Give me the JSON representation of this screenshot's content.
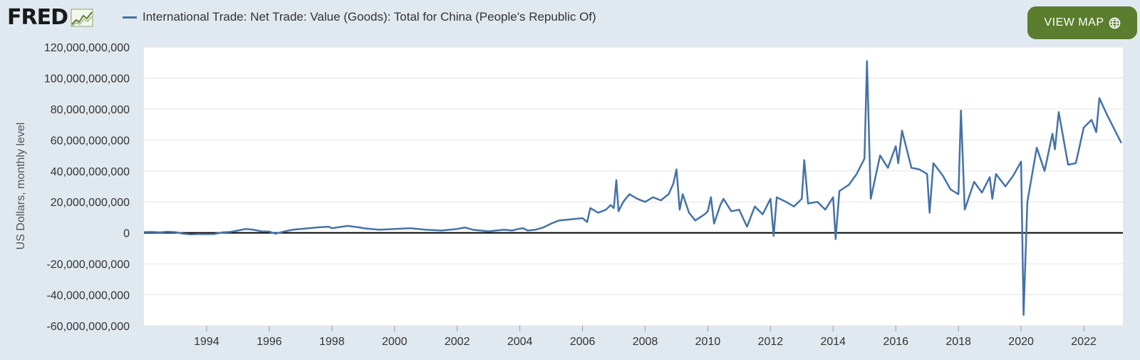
{
  "header": {
    "logo_text": "FRED",
    "legend_label": "International Trade: Net Trade: Value (Goods): Total for China (People's Republic Of)",
    "view_map_label": "VIEW MAP"
  },
  "colors": {
    "series": "#4572a7",
    "background": "#e1e9f0",
    "plot_background": "#ffffff",
    "button": "#5a7d2e",
    "zero_line": "#000000"
  },
  "chart_data": {
    "type": "line",
    "title": "International Trade: Net Trade: Value (Goods): Total for China (People's Republic Of)",
    "xlabel": "",
    "ylabel": "US Dollars, monthly level",
    "xlim": [
      1992.0,
      2023.25
    ],
    "ylim": [
      -60000000000,
      120000000000
    ],
    "x_ticks": [
      1994,
      1996,
      1998,
      2000,
      2002,
      2004,
      2006,
      2008,
      2010,
      2012,
      2014,
      2016,
      2018,
      2020,
      2022
    ],
    "x_tick_labels": [
      "1994",
      "1996",
      "1998",
      "2000",
      "2002",
      "2004",
      "2006",
      "2008",
      "2010",
      "2012",
      "2014",
      "2016",
      "2018",
      "2020",
      "2022"
    ],
    "y_ticks": [
      120000000000,
      100000000000,
      80000000000,
      60000000000,
      40000000000,
      20000000000,
      0,
      -20000000000,
      -40000000000,
      -60000000000
    ],
    "y_tick_labels": [
      "120,000,000,000",
      "100,000,000,000",
      "80,000,000,000",
      "60,000,000,000",
      "40,000,000,000",
      "20,000,000,000",
      "0",
      "-20,000,000,000",
      "-40,000,000,000",
      "-60,000,000,000"
    ],
    "grid": true,
    "series": [
      {
        "name": "International Trade: Net Trade: Value (Goods): Total for China (People's Republic Of)",
        "x": [
          1992.0,
          1992.25,
          1992.5,
          1992.75,
          1993.0,
          1993.25,
          1993.5,
          1993.75,
          1994.0,
          1994.25,
          1994.5,
          1994.75,
          1995.0,
          1995.25,
          1995.5,
          1995.75,
          1996.0,
          1996.2,
          1996.5,
          1996.75,
          1997.0,
          1997.5,
          1997.9,
          1998.0,
          1998.5,
          1998.9,
          1999.0,
          1999.5,
          2000.0,
          2000.5,
          2001.0,
          2001.5,
          2002.0,
          2002.25,
          2002.5,
          2003.0,
          2003.5,
          2003.75,
          2003.95,
          2004.1,
          2004.25,
          2004.5,
          2004.75,
          2005.0,
          2005.25,
          2005.5,
          2005.75,
          2006.0,
          2006.15,
          2006.25,
          2006.5,
          2006.75,
          2006.9,
          2007.0,
          2007.08,
          2007.15,
          2007.3,
          2007.5,
          2007.75,
          2008.0,
          2008.25,
          2008.5,
          2008.75,
          2008.9,
          2009.0,
          2009.1,
          2009.2,
          2009.4,
          2009.6,
          2009.9,
          2010.0,
          2010.1,
          2010.2,
          2010.4,
          2010.5,
          2010.75,
          2011.0,
          2011.25,
          2011.5,
          2011.75,
          2012.0,
          2012.1,
          2012.2,
          2012.5,
          2012.75,
          2013.0,
          2013.08,
          2013.2,
          2013.5,
          2013.75,
          2014.0,
          2014.08,
          2014.2,
          2014.5,
          2014.75,
          2015.0,
          2015.08,
          2015.2,
          2015.5,
          2015.75,
          2016.0,
          2016.08,
          2016.2,
          2016.5,
          2016.75,
          2017.0,
          2017.08,
          2017.2,
          2017.5,
          2017.75,
          2018.0,
          2018.08,
          2018.2,
          2018.5,
          2018.75,
          2019.0,
          2019.08,
          2019.2,
          2019.5,
          2019.75,
          2020.0,
          2020.08,
          2020.2,
          2020.5,
          2020.75,
          2021.0,
          2021.08,
          2021.2,
          2021.5,
          2021.75,
          2022.0,
          2022.25,
          2022.4,
          2022.5,
          2022.75,
          2023.0,
          2023.2
        ],
        "values": [
          500000000,
          600000000,
          300000000,
          700000000,
          500000000,
          -500000000,
          -1000000000,
          -700000000,
          -800000000,
          -700000000,
          300000000,
          600000000,
          1500000000,
          2500000000,
          2000000000,
          1000000000,
          800000000,
          -500000000,
          1000000000,
          2000000000,
          2500000000,
          3500000000,
          4000000000,
          3000000000,
          4500000000,
          3500000000,
          3000000000,
          2000000000,
          2500000000,
          3000000000,
          2000000000,
          1500000000,
          2500000000,
          3500000000,
          2000000000,
          1000000000,
          2000000000,
          1500000000,
          2500000000,
          3000000000,
          1500000000,
          2000000000,
          3500000000,
          6000000000,
          8000000000,
          8500000000,
          9000000000,
          9500000000,
          7000000000,
          16000000000,
          13000000000,
          15000000000,
          18000000000,
          16000000000,
          34000000000,
          14000000000,
          20000000000,
          25000000000,
          22000000000,
          20000000000,
          23000000000,
          21000000000,
          25000000000,
          32000000000,
          41000000000,
          15000000000,
          25000000000,
          13000000000,
          8000000000,
          12000000000,
          14000000000,
          23000000000,
          6000000000,
          18000000000,
          22000000000,
          14000000000,
          15000000000,
          4000000000,
          17000000000,
          12000000000,
          22000000000,
          -2000000000,
          23000000000,
          20000000000,
          17000000000,
          22000000000,
          47000000000,
          19000000000,
          20000000000,
          15000000000,
          23000000000,
          -4000000000,
          27000000000,
          31000000000,
          38000000000,
          48000000000,
          111000000000,
          22000000000,
          50000000000,
          42000000000,
          56000000000,
          45000000000,
          66000000000,
          42000000000,
          41000000000,
          38000000000,
          13000000000,
          45000000000,
          37000000000,
          28000000000,
          25000000000,
          79000000000,
          15000000000,
          33000000000,
          26000000000,
          36000000000,
          22000000000,
          38000000000,
          30000000000,
          37000000000,
          46000000000,
          -53000000000,
          20000000000,
          55000000000,
          40000000000,
          64000000000,
          54000000000,
          78000000000,
          44000000000,
          45000000000,
          68000000000,
          73000000000,
          65000000000,
          87000000000,
          76000000000,
          66000000000,
          58000000000
        ]
      }
    ]
  }
}
